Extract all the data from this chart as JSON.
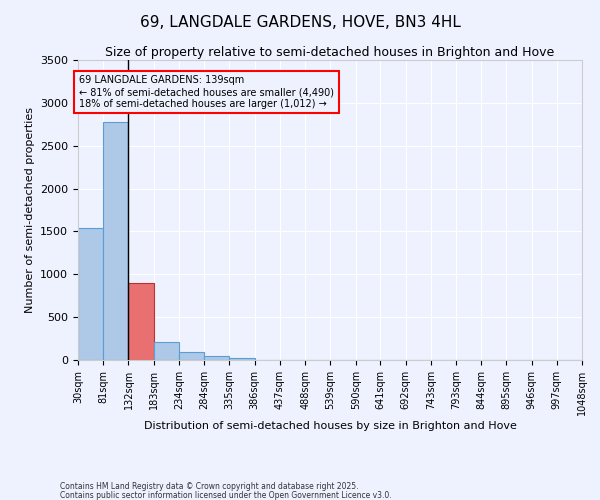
{
  "title": "69, LANGDALE GARDENS, HOVE, BN3 4HL",
  "subtitle": "Size of property relative to semi-detached houses in Brighton and Hove",
  "xlabel": "Distribution of semi-detached houses by size in Brighton and Hove",
  "ylabel": "Number of semi-detached properties",
  "footnote1": "Contains HM Land Registry data © Crown copyright and database right 2025.",
  "footnote2": "Contains public sector information licensed under the Open Government Licence v3.0.",
  "annotation_line1": "69 LANGDALE GARDENS: 139sqm",
  "annotation_line2": "← 81% of semi-detached houses are smaller (4,490)",
  "annotation_line3": "18% of semi-detached houses are larger (1,012) →",
  "bar_bins": [
    30,
    81,
    132,
    183,
    234,
    285,
    336,
    387,
    438,
    489,
    540,
    591,
    641,
    692,
    743,
    793,
    844,
    895,
    946,
    997,
    1048
  ],
  "bar_values": [
    1540,
    2780,
    900,
    215,
    95,
    45,
    20,
    0,
    0,
    0,
    0,
    0,
    0,
    0,
    0,
    0,
    0,
    0,
    0,
    0
  ],
  "bar_color": "#aec8e8",
  "bar_edge_color": "#5a9fd4",
  "bar_color_highlight": "#e87070",
  "bar_edge_highlight": "#c03030",
  "vline_color": "black",
  "highlight_bin_index": 2,
  "ylim": [
    0,
    3500
  ],
  "background_color": "#eef2ff",
  "annotation_box_color": "red",
  "title_fontsize": 11,
  "subtitle_fontsize": 9,
  "axis_label_fontsize": 8,
  "tick_label_fontsize": 7,
  "tick_labels": [
    "30sqm",
    "81sqm",
    "132sqm",
    "183sqm",
    "234sqm",
    "284sqm",
    "335sqm",
    "386sqm",
    "437sqm",
    "488sqm",
    "539sqm",
    "590sqm",
    "641sqm",
    "692sqm",
    "743sqm",
    "793sqm",
    "844sqm",
    "895sqm",
    "946sqm",
    "997sqm",
    "1048sqm"
  ]
}
